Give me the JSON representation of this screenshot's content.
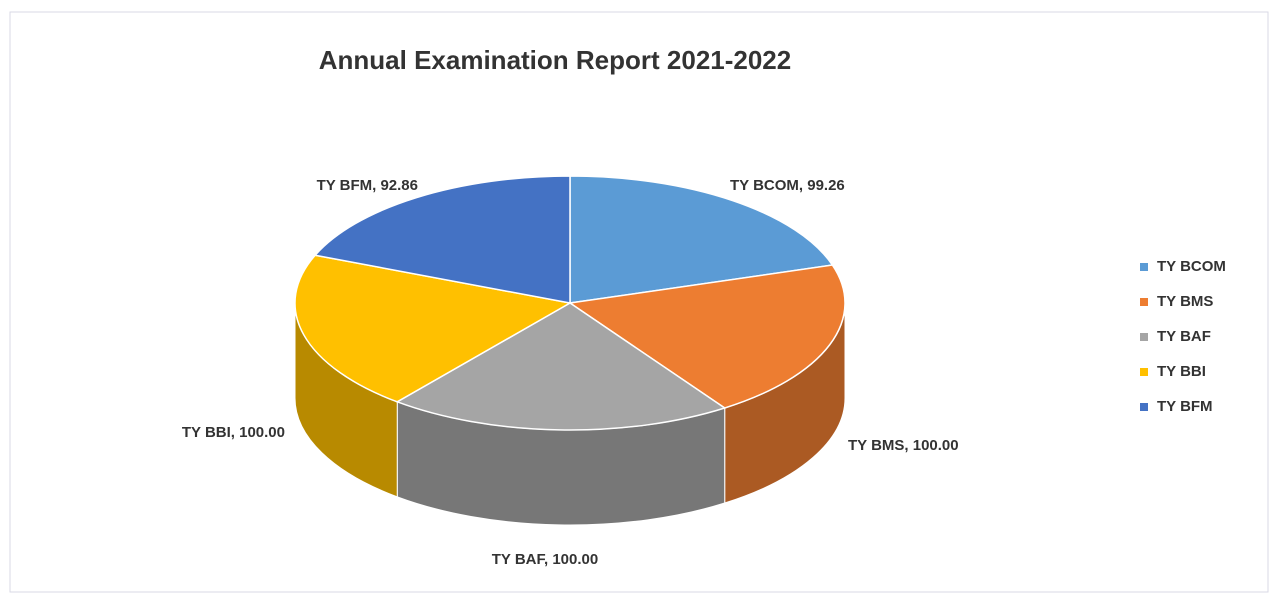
{
  "chart_data": {
    "type": "pie3d",
    "title": "Annual Examination Report  2021-2022",
    "categories": [
      "TY BCOM",
      "TY BMS",
      "TY BAF",
      "TY BBI",
      "TY BFM"
    ],
    "values": [
      99.26,
      100,
      100,
      100,
      92.86
    ],
    "value_labels": [
      "TY BCOM, 99.26",
      "TY BMS, 100.00",
      "TY BAF, 100.00",
      "TY BBI, 100.00",
      "TY BFM, 92.86"
    ],
    "colors": [
      "#5b9bd5",
      "#ed7d31",
      "#a5a5a5",
      "#ffc000",
      "#4472c4"
    ],
    "legend": "right"
  }
}
